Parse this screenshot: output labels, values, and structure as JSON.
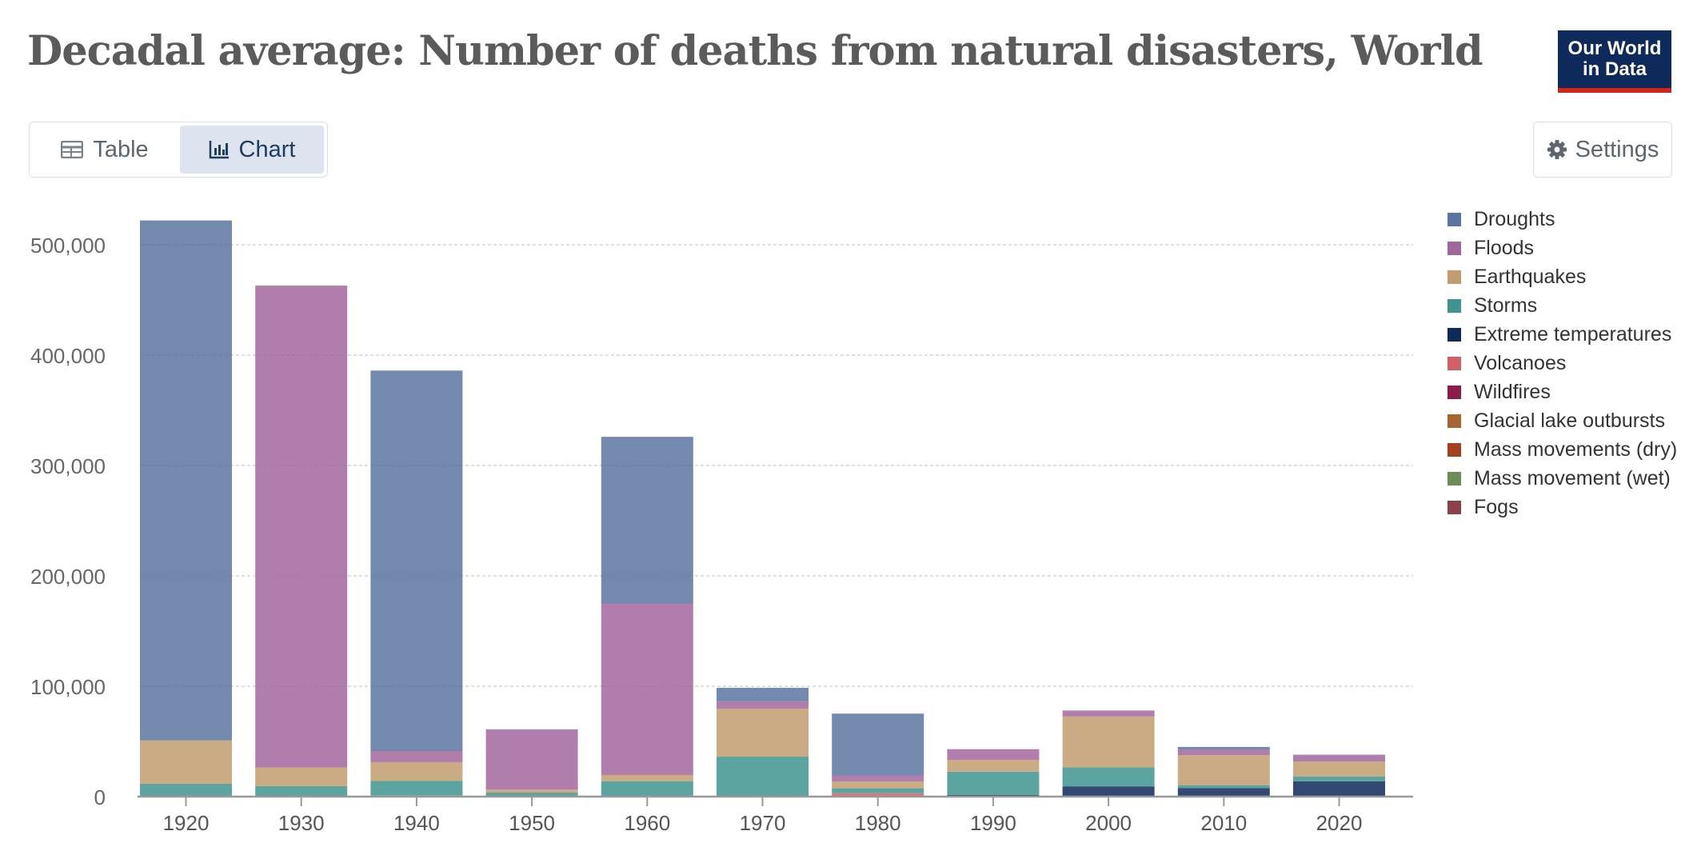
{
  "header": {
    "title": "Decadal average: Number of deaths from natural disasters, World",
    "logo_line1": "Our World",
    "logo_line2": "in Data"
  },
  "tabs": [
    {
      "label": "Table",
      "icon": "table-icon",
      "active": false
    },
    {
      "label": "Chart",
      "icon": "chart-icon",
      "active": true
    }
  ],
  "settings": {
    "label": "Settings",
    "icon": "gear-icon"
  },
  "chart_data": {
    "type": "bar",
    "stacked": true,
    "title": "Decadal average: Number of deaths from natural disasters, World",
    "xlabel": "",
    "ylabel": "",
    "ylim": [
      0,
      520000
    ],
    "yticks": [
      0,
      100000,
      200000,
      300000,
      400000,
      500000
    ],
    "ytick_labels": [
      "0",
      "100,000",
      "200,000",
      "300,000",
      "400,000",
      "500,000"
    ],
    "grid": true,
    "legend_position": "right",
    "categories": [
      "1920",
      "1930",
      "1940",
      "1950",
      "1960",
      "1970",
      "1980",
      "1990",
      "2000",
      "2010",
      "2020"
    ],
    "series": [
      {
        "name": "Fogs",
        "color": "#8c4047",
        "values": [
          0,
          0,
          0,
          0,
          0,
          0,
          0,
          0,
          0,
          0,
          0
        ]
      },
      {
        "name": "Mass movement (wet)",
        "color": "#6a8e55",
        "values": [
          100,
          100,
          1200,
          200,
          300,
          300,
          300,
          300,
          300,
          400,
          200
        ]
      },
      {
        "name": "Mass movements (dry)",
        "color": "#a6411f",
        "values": [
          0,
          0,
          0,
          0,
          0,
          0,
          0,
          0,
          0,
          0,
          0
        ]
      },
      {
        "name": "Glacial lake outbursts",
        "color": "#a7652f",
        "values": [
          0,
          0,
          0,
          0,
          0,
          0,
          0,
          0,
          0,
          0,
          0
        ]
      },
      {
        "name": "Wildfires",
        "color": "#8b1c4b",
        "values": [
          0,
          0,
          0,
          0,
          0,
          0,
          0,
          0,
          0,
          0,
          100
        ]
      },
      {
        "name": "Volcanoes",
        "color": "#d05f67",
        "values": [
          0,
          500,
          0,
          300,
          300,
          0,
          2800,
          0,
          0,
          0,
          0
        ]
      },
      {
        "name": "Extreme temperatures",
        "color": "#0e2a5a",
        "values": [
          0,
          0,
          0,
          0,
          0,
          0,
          0,
          1300,
          9000,
          7400,
          13500
        ]
      },
      {
        "name": "Storms",
        "color": "#3f948f",
        "values": [
          11500,
          8800,
          13100,
          3100,
          13400,
          35900,
          4400,
          21000,
          17200,
          2600,
          4400
        ]
      },
      {
        "name": "Earthquakes",
        "color": "#c19c6e",
        "values": [
          39400,
          17000,
          16900,
          2900,
          5600,
          43500,
          6300,
          10700,
          46100,
          27200,
          13600
        ]
      },
      {
        "name": "Floods",
        "color": "#a2669f",
        "values": [
          0,
          436600,
          10100,
          54100,
          155400,
          6800,
          5400,
          9700,
          5400,
          5100,
          5800
        ]
      },
      {
        "name": "Droughts",
        "color": "#5b74a0",
        "values": [
          471000,
          0,
          344700,
          400,
          151000,
          12100,
          56000,
          0,
          0,
          2300,
          400
        ]
      }
    ]
  },
  "legend": [
    "Droughts",
    "Floods",
    "Earthquakes",
    "Storms",
    "Extreme temperatures",
    "Volcanoes",
    "Wildfires",
    "Glacial lake outbursts",
    "Mass movements (dry)",
    "Mass movement (wet)",
    "Fogs"
  ]
}
